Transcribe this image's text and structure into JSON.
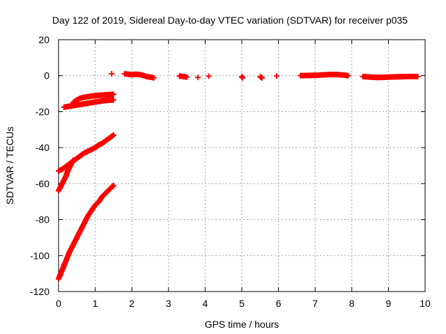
{
  "chart_data": {
    "type": "scatter",
    "title": "Day 122 of 2019, Sidereal Day-to-day VTEC variation (SDTVAR) for receiver p035",
    "xlabel": "GPS time / hours",
    "ylabel": "SDTVAR / TECUs",
    "xlim": [
      0,
      10
    ],
    "ylim": [
      -120,
      20
    ],
    "xticks": [
      0,
      1,
      2,
      3,
      4,
      5,
      6,
      7,
      8,
      9,
      10
    ],
    "yticks": [
      -120,
      -100,
      -80,
      -60,
      -40,
      -20,
      0,
      20
    ],
    "xtick_labels": [
      "0",
      "1",
      "2",
      "3",
      "4",
      "5",
      "6",
      "7",
      "8",
      "9",
      "10"
    ],
    "ytick_labels": [
      "-120",
      "-100",
      "-80",
      "-60",
      "-40",
      "-20",
      "0",
      "20"
    ],
    "grid": true,
    "legend": "none",
    "marker": "plus",
    "color": "#ff0000",
    "series": [
      {
        "points": [
          [
            0.0,
            -113
          ],
          [
            0.1,
            -108
          ],
          [
            0.2,
            -103
          ],
          [
            0.3,
            -98
          ],
          [
            0.4,
            -94
          ],
          [
            0.5,
            -90
          ],
          [
            0.6,
            -86
          ],
          [
            0.7,
            -82
          ],
          [
            0.8,
            -78
          ],
          [
            0.9,
            -75
          ],
          [
            1.0,
            -72
          ],
          [
            1.1,
            -70
          ],
          [
            1.2,
            -67
          ],
          [
            1.3,
            -65
          ],
          [
            1.4,
            -63
          ],
          [
            1.5,
            -61
          ]
        ]
      },
      {
        "points": [
          [
            0.0,
            -64
          ],
          [
            0.05,
            -62
          ],
          [
            0.1,
            -60
          ],
          [
            0.15,
            -58
          ],
          [
            0.2,
            -56
          ],
          [
            0.25,
            -53
          ],
          [
            0.3,
            -51
          ],
          [
            0.35,
            -49
          ],
          [
            0.4,
            -47
          ]
        ]
      },
      {
        "points": [
          [
            0.0,
            -53
          ],
          [
            0.1,
            -52
          ],
          [
            0.2,
            -50.5
          ],
          [
            0.3,
            -49
          ],
          [
            0.4,
            -47.5
          ],
          [
            0.5,
            -46
          ],
          [
            0.6,
            -44.5
          ],
          [
            0.7,
            -43
          ],
          [
            0.8,
            -42
          ],
          [
            0.9,
            -41
          ],
          [
            1.0,
            -40
          ],
          [
            1.1,
            -38.5
          ],
          [
            1.2,
            -37.5
          ],
          [
            1.3,
            -36
          ],
          [
            1.4,
            -34.5
          ],
          [
            1.5,
            -33
          ]
        ]
      },
      {
        "points": [
          [
            0.15,
            -17.5
          ],
          [
            0.3,
            -17
          ],
          [
            0.45,
            -16.5
          ],
          [
            0.6,
            -16
          ],
          [
            0.75,
            -15.5
          ],
          [
            0.9,
            -15
          ],
          [
            1.05,
            -14.5
          ],
          [
            1.2,
            -14
          ],
          [
            1.35,
            -13.7
          ],
          [
            1.5,
            -13.5
          ]
        ]
      },
      {
        "points": [
          [
            0.4,
            -15
          ],
          [
            0.5,
            -13.5
          ],
          [
            0.6,
            -12.5
          ],
          [
            0.7,
            -12
          ],
          [
            0.8,
            -11.7
          ],
          [
            0.9,
            -11.4
          ],
          [
            1.0,
            -11.2
          ],
          [
            1.1,
            -11
          ],
          [
            1.2,
            -10.8
          ],
          [
            1.3,
            -10.6
          ],
          [
            1.4,
            -10.5
          ],
          [
            1.5,
            -10.4
          ]
        ]
      },
      {
        "points": [
          [
            1.45,
            1
          ]
        ]
      },
      {
        "points": [
          [
            1.8,
            1
          ],
          [
            1.9,
            0.8
          ],
          [
            2.0,
            0.5
          ],
          [
            2.1,
            0.8
          ],
          [
            2.2,
            0.6
          ],
          [
            2.3,
            0.2
          ],
          [
            2.4,
            -0.5
          ],
          [
            2.5,
            -0.8
          ],
          [
            2.6,
            -1.2
          ]
        ]
      },
      {
        "points": [
          [
            3.3,
            -0.2
          ],
          [
            3.4,
            -0.5
          ],
          [
            3.5,
            -0.8
          ]
        ]
      },
      {
        "points": [
          [
            3.8,
            -1
          ]
        ]
      },
      {
        "points": [
          [
            4.1,
            -0.3
          ]
        ]
      },
      {
        "points": [
          [
            5.0,
            -0.5
          ],
          [
            5.02,
            -1.2
          ]
        ]
      },
      {
        "points": [
          [
            5.5,
            -0.6
          ],
          [
            5.55,
            -1.2
          ]
        ]
      },
      {
        "points": [
          [
            5.95,
            -0.2
          ]
        ]
      },
      {
        "points": [
          [
            6.6,
            0
          ],
          [
            6.8,
            0.1
          ],
          [
            7.0,
            0.2
          ],
          [
            7.2,
            0.4
          ],
          [
            7.4,
            0.6
          ],
          [
            7.6,
            0.6
          ],
          [
            7.8,
            0.3
          ],
          [
            7.9,
            0
          ]
        ]
      },
      {
        "points": [
          [
            8.3,
            -0.5
          ],
          [
            8.5,
            -0.8
          ],
          [
            8.7,
            -1
          ],
          [
            8.9,
            -0.9
          ],
          [
            9.1,
            -0.7
          ],
          [
            9.3,
            -0.6
          ],
          [
            9.5,
            -0.5
          ],
          [
            9.7,
            -0.5
          ],
          [
            9.8,
            -0.5
          ]
        ]
      }
    ]
  }
}
